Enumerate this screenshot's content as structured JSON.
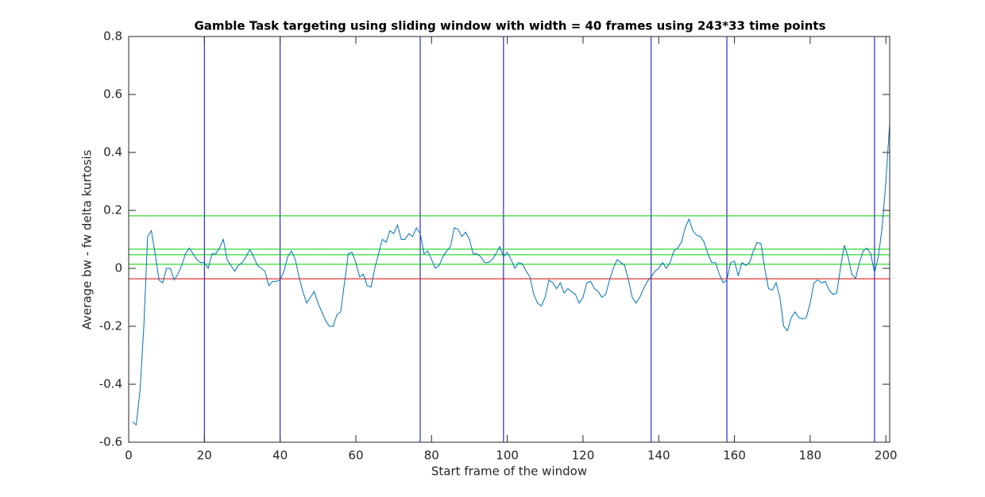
{
  "chart_data": {
    "type": "line",
    "title": "Gamble Task targeting using sliding window with width = 40 frames using 243*33 time points",
    "x_label": "Start frame of the window",
    "y_label": "Average bw - fw delta kurtosis",
    "color": "#0072bd",
    "x": [
      1,
      2,
      3,
      4,
      5,
      6,
      7,
      8,
      9,
      10,
      11,
      12,
      13,
      14,
      15,
      16,
      17,
      18,
      19,
      20,
      21,
      22,
      23,
      24,
      25,
      26,
      27,
      28,
      29,
      30,
      31,
      32,
      33,
      34,
      35,
      36,
      37,
      38,
      39,
      40,
      41,
      42,
      43,
      44,
      45,
      46,
      47,
      48,
      49,
      50,
      51,
      52,
      53,
      54,
      55,
      56,
      57,
      58,
      59,
      60,
      61,
      62,
      63,
      64,
      65,
      66,
      67,
      68,
      69,
      70,
      71,
      72,
      73,
      74,
      75,
      76,
      77,
      78,
      79,
      80,
      81,
      82,
      83,
      84,
      85,
      86,
      87,
      88,
      89,
      90,
      91,
      92,
      93,
      94,
      95,
      96,
      97,
      98,
      99,
      100,
      101,
      102,
      103,
      104,
      105,
      106,
      107,
      108,
      109,
      110,
      111,
      112,
      113,
      114,
      115,
      116,
      117,
      118,
      119,
      120,
      121,
      122,
      123,
      124,
      125,
      126,
      127,
      128,
      129,
      130,
      131,
      132,
      133,
      134,
      135,
      136,
      137,
      138,
      139,
      140,
      141,
      142,
      143,
      144,
      145,
      146,
      147,
      148,
      149,
      150,
      151,
      152,
      153,
      154,
      155,
      156,
      157,
      158,
      159,
      160,
      161,
      162,
      163,
      164,
      165,
      166,
      167,
      168,
      169,
      170,
      171,
      172,
      173,
      174,
      175,
      176,
      177,
      178,
      179,
      180,
      181,
      182,
      183,
      184,
      185,
      186,
      187,
      188,
      189,
      190,
      191,
      192,
      193,
      194,
      195,
      196,
      197,
      198,
      199,
      200,
      201
    ],
    "values": [
      -0.53,
      -0.54,
      -0.42,
      -0.2,
      0.11,
      0.13,
      0.05,
      -0.04,
      -0.05,
      0.0,
      0.0,
      -0.04,
      -0.02,
      0.01,
      0.05,
      0.07,
      0.05,
      0.03,
      0.02,
      0.02,
      0.0,
      0.05,
      0.05,
      0.07,
      0.1,
      0.03,
      0.01,
      -0.01,
      0.01,
      0.02,
      0.04,
      0.065,
      0.04,
      0.01,
      0.0,
      -0.01,
      -0.06,
      -0.045,
      -0.045,
      -0.04,
      -0.01,
      0.04,
      0.06,
      0.03,
      -0.03,
      -0.08,
      -0.12,
      -0.1,
      -0.08,
      -0.12,
      -0.15,
      -0.18,
      -0.2,
      -0.2,
      -0.16,
      -0.15,
      -0.05,
      0.05,
      0.055,
      0.02,
      -0.03,
      -0.02,
      -0.06,
      -0.065,
      0.0,
      0.05,
      0.1,
      0.09,
      0.13,
      0.12,
      0.15,
      0.1,
      0.1,
      0.12,
      0.11,
      0.14,
      0.12,
      0.05,
      0.06,
      0.03,
      0.0,
      0.01,
      0.04,
      0.06,
      0.075,
      0.14,
      0.135,
      0.11,
      0.125,
      0.1,
      0.05,
      0.05,
      0.04,
      0.02,
      0.02,
      0.03,
      0.05,
      0.075,
      0.04,
      0.055,
      0.03,
      0.0,
      0.02,
      0.015,
      -0.01,
      -0.03,
      -0.09,
      -0.12,
      -0.13,
      -0.1,
      -0.04,
      -0.05,
      -0.07,
      -0.05,
      -0.085,
      -0.07,
      -0.08,
      -0.09,
      -0.12,
      -0.1,
      -0.05,
      -0.045,
      -0.07,
      -0.08,
      -0.1,
      -0.09,
      -0.04,
      0.0,
      0.03,
      0.02,
      0.01,
      -0.04,
      -0.1,
      -0.12,
      -0.1,
      -0.07,
      -0.045,
      -0.03,
      -0.01,
      0.0,
      0.02,
      0.0,
      0.02,
      0.06,
      0.07,
      0.09,
      0.14,
      0.17,
      0.13,
      0.115,
      0.11,
      0.09,
      0.05,
      0.02,
      0.02,
      -0.02,
      -0.05,
      -0.04,
      0.02,
      0.025,
      -0.025,
      0.02,
      0.01,
      0.02,
      0.06,
      0.09,
      0.085,
      0.0,
      -0.07,
      -0.075,
      -0.05,
      -0.1,
      -0.2,
      -0.215,
      -0.17,
      -0.15,
      -0.17,
      -0.175,
      -0.17,
      -0.12,
      -0.05,
      -0.04,
      -0.05,
      -0.045,
      -0.075,
      -0.09,
      -0.085,
      0.0,
      0.08,
      0.04,
      -0.02,
      -0.035,
      0.02,
      0.06,
      0.07,
      0.05,
      -0.015,
      0.04,
      0.14,
      0.3,
      0.5
    ],
    "vlines": {
      "color": "#0000c8",
      "values": [
        20,
        40,
        77,
        99,
        138,
        158,
        197
      ]
    },
    "hlines": [
      {
        "color": "#00cc00",
        "values": [
          0.181,
          0.066,
          0.047,
          0.014
        ]
      },
      {
        "color": "#dd0000",
        "values": [
          -0.036
        ]
      }
    ],
    "xlim": [
      0,
      201
    ],
    "ylim": [
      -0.6,
      0.8
    ],
    "xticks": [
      0,
      20,
      40,
      60,
      80,
      100,
      120,
      140,
      160,
      180,
      200
    ],
    "yticks": [
      -0.6,
      -0.4,
      -0.2,
      0,
      0.2,
      0.4,
      0.6,
      0.8
    ],
    "grid": false
  }
}
